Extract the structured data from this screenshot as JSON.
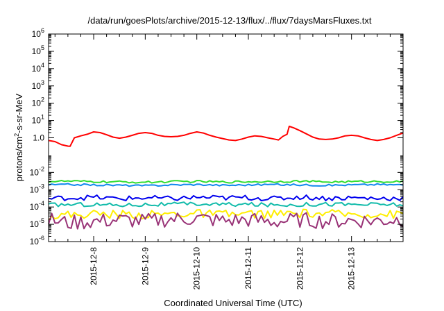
{
  "chart_data": {
    "type": "line",
    "title": "/data/run/goesPlots/archive/2015-12-13/flux/../flux/7daysMarsFluxes.txt",
    "xlabel": "Coordinated Universal Time (UTC)",
    "ylabel_prefix": "protons/cm",
    "ylabel_sup": "2",
    "ylabel_suffix": "-s-sr-MeV",
    "yscale": "log",
    "ylim": [
      1e-06,
      1000000.0
    ],
    "y_ticks": [
      {
        "base": "10",
        "exp": "-6",
        "value": 1e-06
      },
      {
        "base": "10",
        "exp": "-5",
        "value": 1e-05
      },
      {
        "base": "10",
        "exp": "-4",
        "value": 0.0001
      },
      {
        "base": "10",
        "exp": "-3",
        "value": 0.001
      },
      {
        "base": "10",
        "exp": "-2",
        "value": 0.01
      },
      {
        "base": "1.0",
        "exp": "",
        "value": 1
      },
      {
        "base": "10",
        "exp": "1",
        "value": 10
      },
      {
        "base": "10",
        "exp": "2",
        "value": 100
      },
      {
        "base": "10",
        "exp": "3",
        "value": 1000
      },
      {
        "base": "10",
        "exp": "4",
        "value": 10000
      },
      {
        "base": "10",
        "exp": "5",
        "value": 100000
      },
      {
        "base": "10",
        "exp": "6",
        "value": 1000000
      }
    ],
    "xlim": [
      "2015-12-07 03:00",
      "2015-12-14 00:00"
    ],
    "x_ticks": [
      {
        "label": "2015-12-8",
        "value": "2015-12-08 00:00"
      },
      {
        "label": "2015-12-9",
        "value": "2015-12-09 00:00"
      },
      {
        "label": "2015-12-10",
        "value": "2015-12-10 00:00"
      },
      {
        "label": "2015-12-11",
        "value": "2015-12-11 00:00"
      },
      {
        "label": "2015-12-12",
        "value": "2015-12-12 00:00"
      },
      {
        "label": "2015-12-13",
        "value": "2015-12-13 00:00"
      }
    ],
    "grid": false,
    "legend": "none",
    "series": [
      {
        "color": "#ff0000",
        "x": [
          "2015-12-07 03:00",
          "2015-12-07 06:00",
          "2015-12-07 09:00",
          "2015-12-07 12:00",
          "2015-12-07 13:00",
          "2015-12-07 15:00",
          "2015-12-07 18:00",
          "2015-12-07 21:00",
          "2015-12-08 00:00",
          "2015-12-08 03:00",
          "2015-12-08 06:00",
          "2015-12-08 09:00",
          "2015-12-08 12:00",
          "2015-12-08 15:00",
          "2015-12-08 18:00",
          "2015-12-08 21:00",
          "2015-12-09 00:00",
          "2015-12-09 03:00",
          "2015-12-09 06:00",
          "2015-12-09 09:00",
          "2015-12-09 12:00",
          "2015-12-09 15:00",
          "2015-12-09 18:00",
          "2015-12-09 21:00",
          "2015-12-10 00:00",
          "2015-12-10 03:00",
          "2015-12-10 06:00",
          "2015-12-10 09:00",
          "2015-12-10 12:00",
          "2015-12-10 15:00",
          "2015-12-10 18:00",
          "2015-12-10 21:00",
          "2015-12-11 00:00",
          "2015-12-11 03:00",
          "2015-12-11 06:00",
          "2015-12-11 09:00",
          "2015-12-11 12:00",
          "2015-12-11 14:00",
          "2015-12-11 16:00",
          "2015-12-11 18:00",
          "2015-12-11 19:00",
          "2015-12-11 21:00",
          "2015-12-12 00:00",
          "2015-12-12 03:00",
          "2015-12-12 06:00",
          "2015-12-12 09:00",
          "2015-12-12 12:00",
          "2015-12-12 15:00",
          "2015-12-12 18:00",
          "2015-12-12 21:00",
          "2015-12-13 00:00",
          "2015-12-13 03:00",
          "2015-12-13 06:00",
          "2015-12-13 09:00",
          "2015-12-13 12:00",
          "2015-12-13 15:00",
          "2015-12-13 18:00",
          "2015-12-13 21:00",
          "2015-12-14 00:00"
        ],
        "y": [
          0.7,
          0.6,
          0.4,
          0.33,
          0.32,
          1.0,
          1.3,
          1.6,
          2.2,
          2.0,
          1.5,
          1.1,
          0.95,
          1.1,
          1.4,
          1.8,
          2.0,
          1.8,
          1.4,
          1.2,
          1.15,
          1.2,
          1.4,
          1.8,
          2.2,
          1.9,
          1.4,
          1.1,
          0.9,
          0.75,
          0.7,
          0.85,
          1.1,
          1.3,
          1.2,
          1.0,
          0.85,
          0.75,
          1.2,
          1.6,
          4.6,
          3.8,
          2.6,
          1.7,
          1.1,
          0.85,
          0.8,
          0.85,
          1.0,
          1.3,
          1.4,
          1.3,
          1.0,
          0.8,
          0.7,
          0.8,
          1.0,
          1.4,
          1.9
        ]
      },
      {
        "color": "#33dd33",
        "x": [
          "2015-12-07 03:00",
          "2015-12-07 12:00",
          "2015-12-08 00:00",
          "2015-12-08 12:00",
          "2015-12-09 00:00",
          "2015-12-09 12:00",
          "2015-12-10 00:00",
          "2015-12-10 12:00",
          "2015-12-11 00:00",
          "2015-12-11 12:00",
          "2015-12-12 00:00",
          "2015-12-12 12:00",
          "2015-12-13 00:00",
          "2015-12-13 12:00",
          "2015-12-14 00:00"
        ],
        "y": [
          0.003,
          0.0031,
          0.0029,
          0.0028,
          0.0027,
          0.0029,
          0.003,
          0.0028,
          0.0029,
          0.003,
          0.0031,
          0.0028,
          0.0029,
          0.003,
          0.0029
        ],
        "noise": 0.06
      },
      {
        "color": "#1188ee",
        "x": [
          "2015-12-07 03:00",
          "2015-12-07 12:00",
          "2015-12-08 00:00",
          "2015-12-08 12:00",
          "2015-12-09 00:00",
          "2015-12-09 12:00",
          "2015-12-10 00:00",
          "2015-12-10 12:00",
          "2015-12-11 00:00",
          "2015-12-11 12:00",
          "2015-12-12 00:00",
          "2015-12-12 12:00",
          "2015-12-13 00:00",
          "2015-12-13 12:00",
          "2015-12-14 00:00"
        ],
        "y": [
          0.0019,
          0.002,
          0.0019,
          0.0018,
          0.0017,
          0.0019,
          0.002,
          0.0018,
          0.0019,
          0.002,
          0.0019,
          0.0018,
          0.0019,
          0.002,
          0.0019
        ],
        "noise": 0.05
      },
      {
        "color": "#0000ee",
        "x": [
          "2015-12-07 03:00",
          "2015-12-07 12:00",
          "2015-12-08 00:00",
          "2015-12-08 12:00",
          "2015-12-09 00:00",
          "2015-12-09 12:00",
          "2015-12-10 00:00",
          "2015-12-10 12:00",
          "2015-12-11 00:00",
          "2015-12-11 12:00",
          "2015-12-12 00:00",
          "2015-12-12 12:00",
          "2015-12-13 00:00",
          "2015-12-13 12:00",
          "2015-12-14 00:00"
        ],
        "y": [
          0.0003,
          0.00034,
          0.00036,
          0.0003,
          0.00034,
          0.0003,
          0.00036,
          0.00033,
          0.00035,
          0.0003,
          0.00038,
          0.00032,
          0.00034,
          0.00031,
          0.00033
        ],
        "noise": 0.15
      },
      {
        "color": "#11bbaa",
        "x": [
          "2015-12-07 03:00",
          "2015-12-07 12:00",
          "2015-12-08 00:00",
          "2015-12-08 12:00",
          "2015-12-09 00:00",
          "2015-12-09 12:00",
          "2015-12-10 00:00",
          "2015-12-10 12:00",
          "2015-12-11 00:00",
          "2015-12-11 12:00",
          "2015-12-12 00:00",
          "2015-12-12 12:00",
          "2015-12-13 00:00",
          "2015-12-13 12:00",
          "2015-12-14 00:00"
        ],
        "y": [
          0.00013,
          0.00014,
          0.00014,
          0.00013,
          0.00014,
          0.00014,
          0.00015,
          0.00014,
          0.00014,
          0.00013,
          0.00014,
          0.00015,
          0.00014,
          0.00014,
          0.00014
        ],
        "noise": 0.12
      },
      {
        "color": "#ffee00",
        "x": [
          "2015-12-07 03:00",
          "2015-12-07 12:00",
          "2015-12-08 00:00",
          "2015-12-08 12:00",
          "2015-12-09 00:00",
          "2015-12-09 12:00",
          "2015-12-10 00:00",
          "2015-12-10 12:00",
          "2015-12-11 00:00",
          "2015-12-11 12:00",
          "2015-12-12 00:00",
          "2015-12-12 12:00",
          "2015-12-13 00:00",
          "2015-12-13 12:00",
          "2015-12-14 00:00"
        ],
        "y": [
          3e-05,
          3.5e-05,
          4e-05,
          3.8e-05,
          3.5e-05,
          4e-05,
          4.2e-05,
          3.6e-05,
          4e-05,
          3.8e-05,
          4.2e-05,
          4e-05,
          3.8e-05,
          4e-05,
          3.6e-05
        ],
        "noise": 0.25
      },
      {
        "color": "#993377",
        "x": [
          "2015-12-07 03:00",
          "2015-12-07 12:00",
          "2015-12-08 00:00",
          "2015-12-08 12:00",
          "2015-12-09 00:00",
          "2015-12-09 12:00",
          "2015-12-10 00:00",
          "2015-12-10 12:00",
          "2015-12-11 00:00",
          "2015-12-11 12:00",
          "2015-12-12 00:00",
          "2015-12-12 12:00",
          "2015-12-13 00:00",
          "2015-12-13 12:00",
          "2015-12-14 00:00"
        ],
        "y": [
          1.8e-05,
          1.2e-05,
          1.5e-05,
          1.8e-05,
          1.5e-05,
          2e-05,
          2.2e-05,
          1.6e-05,
          1.8e-05,
          1.4e-05,
          1.8e-05,
          1.5e-05,
          1.7e-05,
          1.6e-05,
          2e-05
        ],
        "noise": 0.45
      }
    ]
  }
}
